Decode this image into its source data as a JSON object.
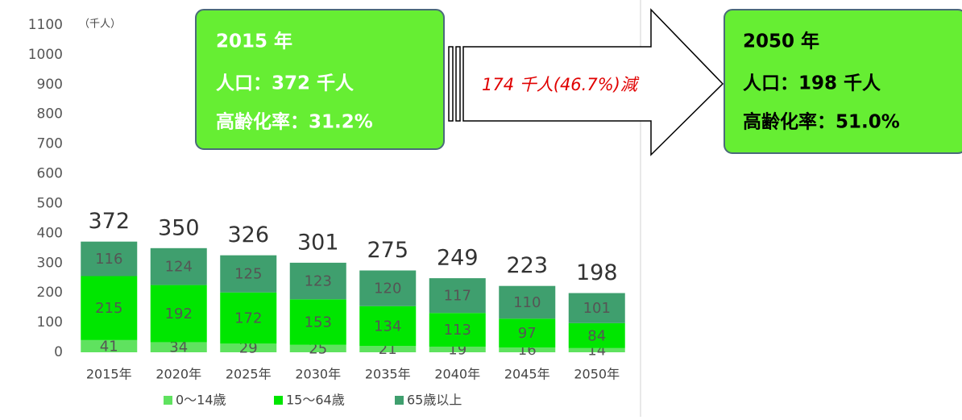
{
  "chart_data": {
    "type": "bar",
    "stacked": true,
    "unit_label": "（千人）",
    "categories": [
      "2015年",
      "2020年",
      "2025年",
      "2030年",
      "2035年",
      "2040年",
      "2045年",
      "2050年"
    ],
    "series": [
      {
        "name": "0〜14歳",
        "color": "#5fe25f",
        "values": [
          41,
          34,
          29,
          25,
          21,
          19,
          16,
          14
        ]
      },
      {
        "name": "15〜64歳",
        "color": "#00e600",
        "values": [
          215,
          192,
          172,
          153,
          134,
          113,
          97,
          84
        ]
      },
      {
        "name": "65歳以上",
        "color": "#3f9f6e",
        "values": [
          116,
          124,
          125,
          123,
          120,
          117,
          110,
          101
        ]
      }
    ],
    "totals": [
      372,
      350,
      326,
      301,
      275,
      249,
      223,
      198
    ],
    "ylim": [
      0,
      1100
    ],
    "yticks": [
      0,
      100,
      200,
      300,
      400,
      500,
      600,
      700,
      800,
      900,
      1000,
      1100
    ],
    "annotations": {
      "start": {
        "year": "2015 年",
        "population": "人口：372 千人",
        "aging": "高齢化率：31.2%"
      },
      "change": "174 千人(46.7%)減",
      "end": {
        "year": "2050 年",
        "population": "人口：198 千人",
        "aging": "高齢化率：51.0%"
      }
    }
  }
}
